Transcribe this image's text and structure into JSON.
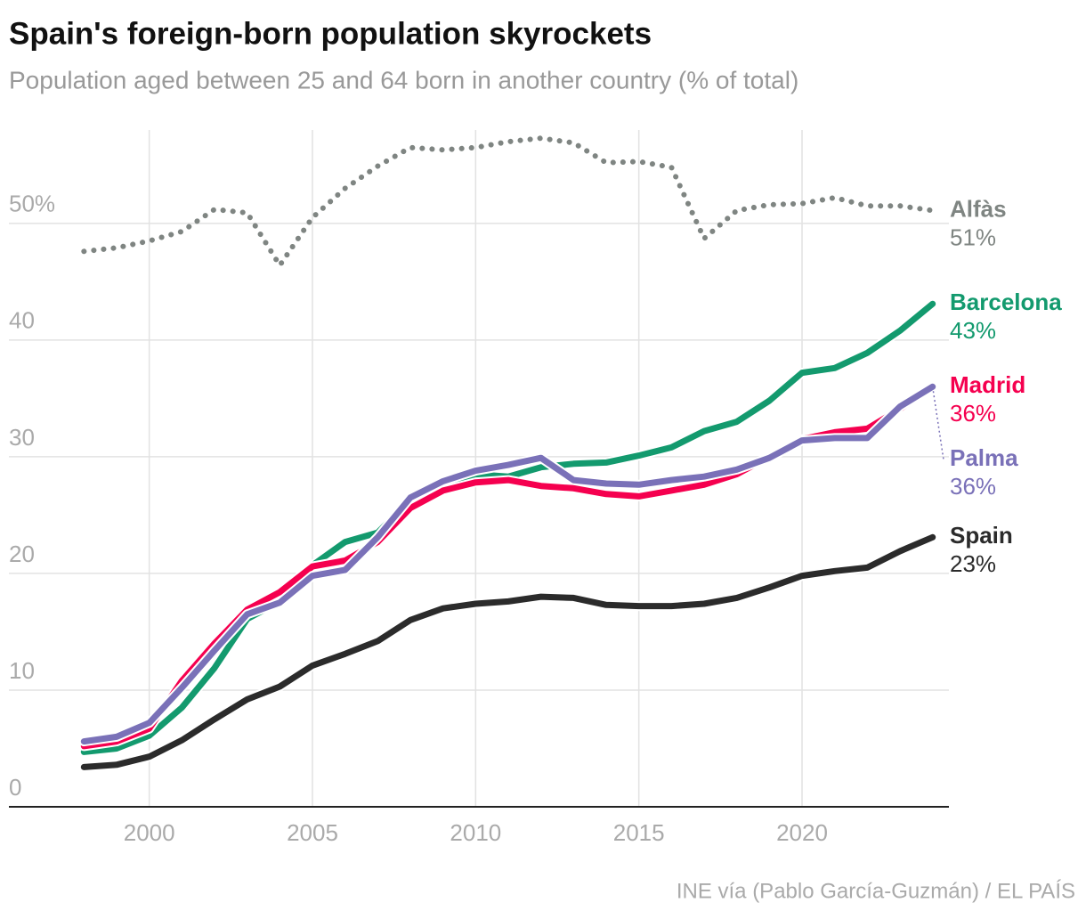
{
  "chart_data": {
    "type": "line",
    "title": "Spain's foreign-born population skyrockets",
    "subtitle": "Population aged between 25 and 64 born in another country (% of total)",
    "source": "INE vía (Pablo García-Guzmán) / EL PAÍS",
    "x": [
      1998,
      1999,
      2000,
      2001,
      2002,
      2003,
      2004,
      2005,
      2006,
      2007,
      2008,
      2009,
      2010,
      2011,
      2012,
      2013,
      2014,
      2015,
      2016,
      2017,
      2018,
      2019,
      2020,
      2021,
      2022,
      2023,
      2024
    ],
    "xlim": [
      1995.7,
      2024.5
    ],
    "xticks": [
      2000,
      2005,
      2010,
      2015,
      2020
    ],
    "ylim": [
      0,
      58
    ],
    "yticks": [
      0,
      10,
      20,
      30,
      40,
      {
        "value": 50,
        "label": "50%"
      }
    ],
    "grid": true,
    "series": [
      {
        "name": "Alfàs",
        "color": "#7f8582",
        "dash": "dotted",
        "values": [
          47.6,
          47.9,
          48.5,
          49.3,
          51.2,
          50.9,
          46.4,
          50.5,
          53.0,
          54.9,
          56.5,
          56.3,
          56.5,
          57.0,
          57.3,
          56.9,
          55.2,
          55.3,
          54.8,
          48.7,
          51.1,
          51.6,
          51.7,
          52.2,
          51.5,
          51.5,
          51.1
        ],
        "value_labels": [
          null,
          null,
          null,
          null,
          null,
          null,
          null,
          null,
          null,
          null,
          null,
          null,
          null,
          null,
          null,
          null,
          null,
          null,
          null,
          null,
          null,
          null,
          null,
          null,
          null,
          null,
          "51%"
        ]
      },
      {
        "name": "Barcelona",
        "color": "#139a6e",
        "values": [
          4.7,
          5.0,
          6.1,
          8.5,
          11.9,
          16.1,
          17.6,
          20.7,
          22.7,
          23.5,
          26.3,
          27.6,
          28.5,
          28.3,
          29.1,
          29.4,
          29.5,
          30.1,
          30.8,
          32.2,
          33.0,
          34.8,
          37.2,
          37.6,
          38.9,
          40.8,
          43.1
        ],
        "value_labels": [
          null,
          null,
          null,
          null,
          null,
          null,
          null,
          null,
          null,
          null,
          null,
          null,
          null,
          null,
          null,
          null,
          null,
          null,
          null,
          null,
          null,
          null,
          null,
          null,
          null,
          null,
          "43%"
        ]
      },
      {
        "name": "Madrid",
        "color": "#f5004f",
        "values": [
          5.2,
          5.6,
          6.7,
          10.8,
          14.0,
          16.9,
          18.4,
          20.6,
          21.1,
          22.7,
          25.6,
          27.1,
          27.8,
          28.0,
          27.5,
          27.3,
          26.8,
          26.6,
          27.1,
          27.6,
          28.5,
          30.0,
          31.5,
          32.1,
          32.4,
          34.1,
          36.0
        ],
        "value_labels": [
          null,
          null,
          null,
          null,
          null,
          null,
          null,
          null,
          null,
          null,
          null,
          null,
          null,
          null,
          null,
          null,
          null,
          null,
          null,
          null,
          null,
          null,
          null,
          null,
          null,
          null,
          "36%"
        ]
      },
      {
        "name": "Palma",
        "color": "#7a71b8",
        "values": [
          5.6,
          6.0,
          7.2,
          10.2,
          13.4,
          16.5,
          17.5,
          19.8,
          20.3,
          23.1,
          26.5,
          27.9,
          28.8,
          29.3,
          29.9,
          28.0,
          27.7,
          27.6,
          28.0,
          28.3,
          28.9,
          29.9,
          31.4,
          31.6,
          31.6,
          34.3,
          36.0
        ],
        "value_labels": [
          null,
          null,
          null,
          null,
          null,
          null,
          null,
          null,
          null,
          null,
          null,
          null,
          null,
          null,
          null,
          null,
          null,
          null,
          null,
          null,
          null,
          null,
          null,
          null,
          null,
          null,
          "36%"
        ]
      },
      {
        "name": "Spain",
        "color": "#2b2b2b",
        "values": [
          3.4,
          3.6,
          4.3,
          5.7,
          7.5,
          9.2,
          10.3,
          12.1,
          13.1,
          14.2,
          16.0,
          17.0,
          17.4,
          17.6,
          18.0,
          17.9,
          17.3,
          17.2,
          17.2,
          17.4,
          17.9,
          18.8,
          19.8,
          20.2,
          20.5,
          21.9,
          23.1
        ],
        "value_labels": [
          null,
          null,
          null,
          null,
          null,
          null,
          null,
          null,
          null,
          null,
          null,
          null,
          null,
          null,
          null,
          null,
          null,
          null,
          null,
          null,
          null,
          null,
          null,
          null,
          null,
          null,
          "23%"
        ]
      }
    ]
  }
}
